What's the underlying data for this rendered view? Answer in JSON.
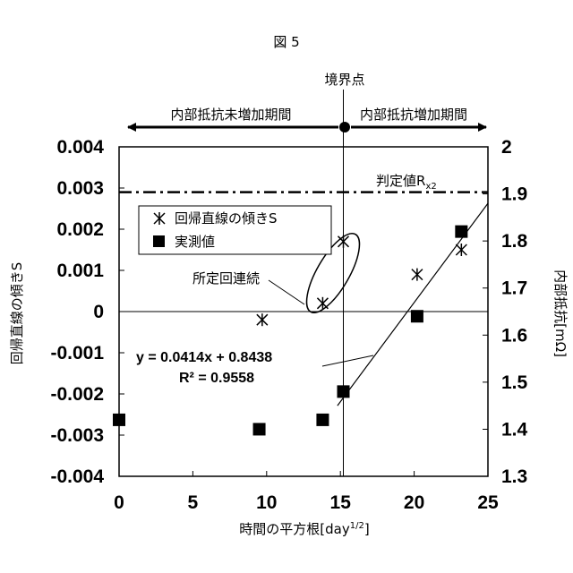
{
  "chart_data": {
    "type": "scatter",
    "figure_label": "図 5",
    "xlabel": "時間の平方根[day",
    "xlabel_sup": "1/2",
    "xlabel_end": "]",
    "ylabel_left": "回帰直線の傾きS",
    "ylabel_right": "内部抵抗[mΩ]",
    "xlim": [
      0,
      25
    ],
    "ylim_left": [
      -0.004,
      0.004
    ],
    "ylim_right": [
      1.3,
      2.0
    ],
    "x_ticks": [
      "0",
      "5",
      "10",
      "15",
      "20",
      "25"
    ],
    "x_tick_values": [
      0,
      5,
      10,
      15,
      20,
      25
    ],
    "y_left_ticks": [
      "0.004",
      "0.003",
      "0.002",
      "0.001",
      "0",
      "-0.001",
      "-0.002",
      "-0.003",
      "-0.004"
    ],
    "y_left_tick_values": [
      0.004,
      0.003,
      0.002,
      0.001,
      0,
      -0.001,
      -0.002,
      -0.003,
      -0.004
    ],
    "y_right_ticks": [
      "2",
      "1.9",
      "1.8",
      "1.7",
      "1.6",
      "1.5",
      "1.4",
      "1.3"
    ],
    "y_right_tick_values": [
      2.0,
      1.9,
      1.8,
      1.7,
      1.6,
      1.5,
      1.4,
      1.3
    ],
    "grid": false,
    "series": [
      {
        "name": "回帰直線の傾きS",
        "marker": "asterisk",
        "axis": "left",
        "points": [
          [
            9.7,
            -0.0002
          ],
          [
            13.8,
            0.0002
          ],
          [
            15.2,
            0.0017
          ],
          [
            20.2,
            0.0009
          ],
          [
            23.2,
            0.0015
          ]
        ]
      },
      {
        "name": "実測値",
        "marker": "square",
        "axis": "right",
        "points": [
          [
            0,
            1.42
          ],
          [
            9.5,
            1.4
          ],
          [
            13.8,
            1.42
          ],
          [
            15.2,
            1.48
          ],
          [
            20.2,
            1.64
          ],
          [
            23.2,
            1.82
          ]
        ]
      }
    ],
    "trendline": {
      "axis": "right",
      "x_range": [
        14.8,
        25
      ],
      "y_range": [
        1.45,
        1.88
      ],
      "equation": "y = 0.0414x + 0.8438",
      "r2": "R² = 0.9558"
    },
    "threshold": {
      "label": "判定値R",
      "label_sub": "x2",
      "value_left_axis": 0.0029
    },
    "boundary": {
      "label": "境界点",
      "x": 15.2
    },
    "period_before": "内部抵抗未増加期間",
    "period_after": "内部抵抗増加期間",
    "annotation": "所定回連続",
    "legend_position": "upper-left"
  }
}
